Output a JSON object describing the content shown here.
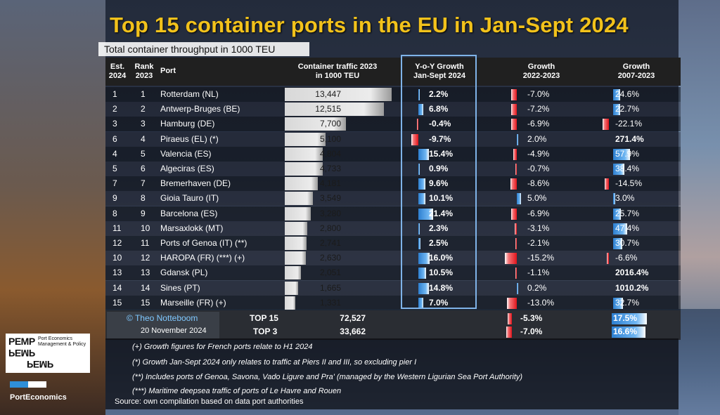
{
  "title": "Top 15 container ports in the EU in Jan-Sept 2024",
  "subtitle": "Total container throughput in 1000 TEU",
  "headers": {
    "est": [
      "Est.",
      "2024"
    ],
    "rank": [
      "Rank",
      "2023"
    ],
    "port": "Port",
    "traffic": [
      "Container traffic 2023",
      "in 1000 TEU"
    ],
    "yoy": [
      "Y-o-Y Growth",
      "Jan-Sept 2024"
    ],
    "g2223": [
      "Growth",
      "2022-2023"
    ],
    "g0723": [
      "Growth",
      "2007-2023"
    ]
  },
  "rows": [
    {
      "est": "1",
      "rank": "1",
      "port": "Rotterdam (NL)",
      "traffic": "13,447",
      "yoy": "2.2%",
      "g2223": "-7.0%",
      "g0723": "24.6%"
    },
    {
      "est": "2",
      "rank": "2",
      "port": "Antwerp-Bruges (BE)",
      "traffic": "12,515",
      "yoy": "6.8%",
      "g2223": "-7.2%",
      "g0723": "22.7%"
    },
    {
      "est": "3",
      "rank": "3",
      "port": "Hamburg (DE)",
      "traffic": "7,700",
      "yoy": "-0.4%",
      "g2223": "-6.9%",
      "g0723": "-22.1%"
    },
    {
      "est": "6",
      "rank": "4",
      "port": "Piraeus (EL) (*)",
      "traffic": "5,100",
      "yoy": "-9.7%",
      "g2223": "2.0%",
      "g0723": "271.4%"
    },
    {
      "est": "4",
      "rank": "5",
      "port": "Valencia (ES)",
      "traffic": "4,804",
      "yoy": "15.4%",
      "g2223": "-4.9%",
      "g0723": "57.9%"
    },
    {
      "est": "5",
      "rank": "6",
      "port": "Algeciras (ES)",
      "traffic": "4,733",
      "yoy": "0.9%",
      "g2223": "-0.7%",
      "g0723": "38.4%"
    },
    {
      "est": "7",
      "rank": "7",
      "port": "Bremerhaven (DE)",
      "traffic": "4,181",
      "yoy": "9.6%",
      "g2223": "-8.6%",
      "g0723": "-14.5%"
    },
    {
      "est": "9",
      "rank": "8",
      "port": "Gioia Tauro (IT)",
      "traffic": "3,549",
      "yoy": "10.1%",
      "g2223": "5.0%",
      "g0723": "3.0%"
    },
    {
      "est": "8",
      "rank": "9",
      "port": "Barcelona (ES)",
      "traffic": "3,280",
      "yoy": "21.4%",
      "g2223": "-6.9%",
      "g0723": "25.7%"
    },
    {
      "est": "11",
      "rank": "10",
      "port": "Marsaxlokk (MT)",
      "traffic": "2,800",
      "yoy": "2.3%",
      "g2223": "-3.1%",
      "g0723": "47.4%"
    },
    {
      "est": "12",
      "rank": "11",
      "port": "Ports of Genoa (IT) (**)",
      "traffic": "2,741",
      "yoy": "2.5%",
      "g2223": "-2.1%",
      "g0723": "30.7%"
    },
    {
      "est": "10",
      "rank": "12",
      "port": "HAROPA (FR) (***) (+)",
      "traffic": "2,630",
      "yoy": "16.0%",
      "g2223": "-15.2%",
      "g0723": "-6.6%"
    },
    {
      "est": "13",
      "rank": "13",
      "port": "Gdansk (PL)",
      "traffic": "2,051",
      "yoy": "10.5%",
      "g2223": "-1.1%",
      "g0723": "2016.4%"
    },
    {
      "est": "14",
      "rank": "14",
      "port": "Sines (PT)",
      "traffic": "1,665",
      "yoy": "14.8%",
      "g2223": "0.2%",
      "g0723": "1010.2%"
    },
    {
      "est": "15",
      "rank": "15",
      "port": "Marseille (FR) (+)",
      "traffic": "1,331",
      "yoy": "7.0%",
      "g2223": "-13.0%",
      "g0723": "32.7%"
    }
  ],
  "totals": {
    "copyright": "© Theo Notteboom",
    "date": "20 November 2024",
    "top15": {
      "label": "TOP 15",
      "traffic": "72,527",
      "g2223": "-5.3%",
      "g0723": "17.5%"
    },
    "top3": {
      "label": "TOP 3",
      "traffic": "33,662",
      "g2223": "-7.0%",
      "g0723": "16.6%"
    }
  },
  "notes": [
    "(+) Growth figures for French ports relate to H1 2024",
    "(*) Growth Jan-Sept 2024 only relates to traffic at Piers II and III, so excluding pier I",
    "(**) Includes ports of Genoa, Savona, Vado Ligure and Pra' (managed by the Western Ligurian Sea Port Authority)",
    "(***) Maritime deepsea traffic of ports of Le Havre and Rouen"
  ],
  "source": "Source: own compilation based on data port authorities",
  "logo": {
    "pemp": "PEMP",
    "pemp_sub": "Port Economics Management & Policy",
    "porteconomics": "PortEconomics"
  },
  "colors": {
    "title": "#f2c21b",
    "positive_bar": "#2d7fd0",
    "negative_bar": "#e1141b",
    "frame": "#7fb3e8"
  },
  "chart_data": {
    "type": "table",
    "title": "Top 15 container ports in the EU in Jan-Sept 2024",
    "subtitle": "Total container throughput in 1000 TEU",
    "columns": [
      "Est. 2024",
      "Rank 2023",
      "Port",
      "Container traffic 2023 in 1000 TEU",
      "Y-o-Y Growth Jan-Sept 2024",
      "Growth 2022-2023",
      "Growth 2007-2023"
    ],
    "traffic_2023": [
      13447,
      12515,
      7700,
      5100,
      4804,
      4733,
      4181,
      3549,
      3280,
      2800,
      2741,
      2630,
      2051,
      1665,
      1331
    ],
    "yoy_2024": [
      2.2,
      6.8,
      -0.4,
      -9.7,
      15.4,
      0.9,
      9.6,
      10.1,
      21.4,
      2.3,
      2.5,
      16.0,
      10.5,
      14.8,
      7.0
    ],
    "growth_2022_2023": [
      -7.0,
      -7.2,
      -6.9,
      2.0,
      -4.9,
      -0.7,
      -8.6,
      5.0,
      -6.9,
      -3.1,
      -2.1,
      -15.2,
      -1.1,
      0.2,
      -13.0
    ],
    "growth_2007_2023": [
      24.6,
      22.7,
      -22.1,
      271.4,
      57.9,
      38.4,
      -14.5,
      3.0,
      25.7,
      47.4,
      30.7,
      -6.6,
      2016.4,
      1010.2,
      32.7
    ]
  }
}
